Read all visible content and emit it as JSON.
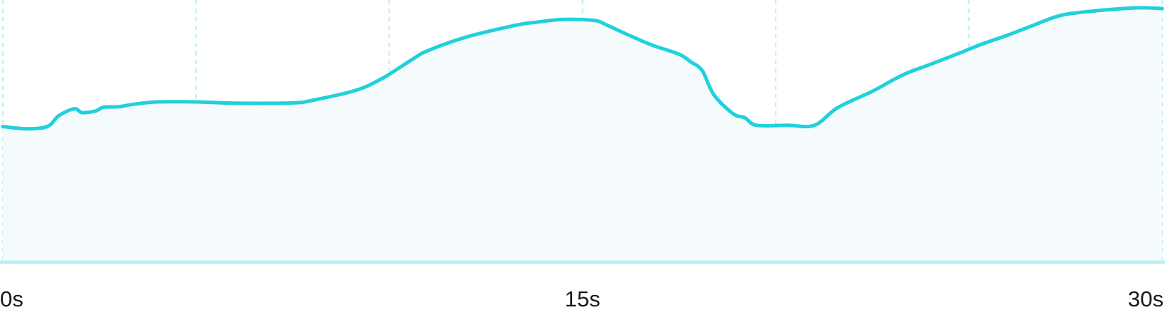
{
  "chart_data": {
    "type": "area",
    "title": "",
    "xlabel": "",
    "ylabel": "",
    "x_unit": "s",
    "xlim": [
      0,
      30
    ],
    "ylim": [
      0,
      1
    ],
    "grid": {
      "vertical": true,
      "horizontal": false,
      "vertical_lines_at": [
        0,
        5,
        10,
        15,
        20,
        25,
        30
      ]
    },
    "x_ticks": [
      {
        "value": 0,
        "label": "0s"
      },
      {
        "value": 15,
        "label": "15s"
      },
      {
        "value": 30,
        "label": "30s"
      }
    ],
    "colors": {
      "line": "#22d0dc",
      "fill": "#f5fbfd",
      "grid": "#bdeef2",
      "baseline": "#bfeef3"
    },
    "series": [
      {
        "x": [
          0,
          0.6,
          1.15,
          1.45,
          1.85,
          2.05,
          2.4,
          2.6,
          3.0,
          3.4,
          4.0,
          5.0,
          6.0,
          7.5,
          8.0,
          9.1,
          9.8,
          10.6,
          11.0,
          12.0,
          13.3,
          13.8,
          14.5,
          15.3,
          15.6,
          16.2,
          16.8,
          17.5,
          17.8,
          18.1,
          18.4,
          18.9,
          19.2,
          19.5,
          20.3,
          21.0,
          21.6,
          22.5,
          23.3,
          24.0,
          24.8,
          25.3,
          26.0,
          26.6,
          27.1,
          27.5,
          28.2,
          29.0,
          29.5,
          30.0
        ],
        "y": [
          0.535,
          0.526,
          0.535,
          0.578,
          0.605,
          0.59,
          0.596,
          0.611,
          0.613,
          0.623,
          0.632,
          0.632,
          0.627,
          0.628,
          0.638,
          0.676,
          0.723,
          0.8,
          0.834,
          0.888,
          0.935,
          0.946,
          0.957,
          0.953,
          0.937,
          0.895,
          0.856,
          0.82,
          0.79,
          0.755,
          0.66,
          0.585,
          0.57,
          0.54,
          0.54,
          0.54,
          0.609,
          0.674,
          0.739,
          0.78,
          0.827,
          0.858,
          0.895,
          0.93,
          0.96,
          0.977,
          0.99,
          1.0,
          1.003,
          1.0
        ]
      }
    ]
  }
}
